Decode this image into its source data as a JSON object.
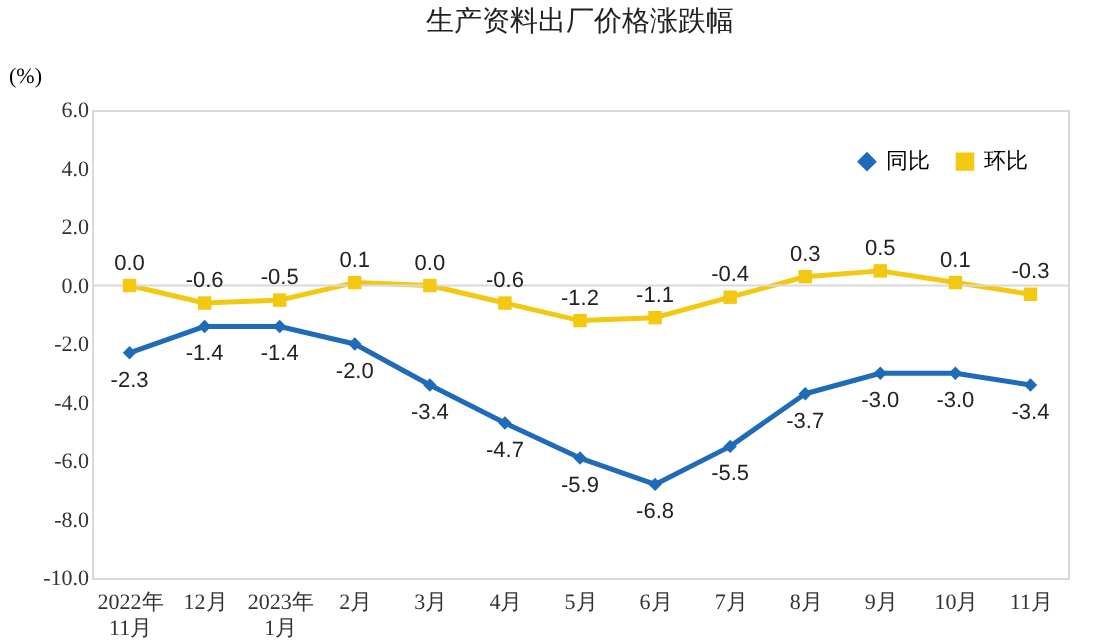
{
  "chart_data": {
    "type": "line",
    "title": "生产资料出厂价格涨跌幅",
    "ylabel": "(%)",
    "categories": [
      "2022年\n11月",
      "12月",
      "2023年\n1月",
      "2月",
      "3月",
      "4月",
      "5月",
      "6月",
      "7月",
      "8月",
      "9月",
      "10月",
      "11月"
    ],
    "series": [
      {
        "name": "同比",
        "color": "#1f6bb8",
        "marker": "diamond",
        "values": [
          -2.3,
          -1.4,
          -1.4,
          -2.0,
          -3.4,
          -4.7,
          -5.9,
          -6.8,
          -5.5,
          -3.7,
          -3.0,
          -3.0,
          -3.4
        ],
        "value_labels": [
          "-2.3",
          "-1.4",
          "-1.4",
          "-2.0",
          "-3.4",
          "-4.7",
          "-5.9",
          "-6.8",
          "-5.5",
          "-3.7",
          "-3.0",
          "-3.0",
          "-3.4"
        ]
      },
      {
        "name": "环比",
        "color": "#f2c811",
        "marker": "square",
        "values": [
          0.0,
          -0.6,
          -0.5,
          0.1,
          0.0,
          -0.6,
          -1.2,
          -1.1,
          -0.4,
          0.3,
          0.5,
          0.1,
          -0.3
        ],
        "value_labels": [
          "0.0",
          "-0.6",
          "-0.5",
          "0.1",
          "0.0",
          "-0.6",
          "-1.2",
          "-1.1",
          "-0.4",
          "0.3",
          "0.5",
          "0.1",
          "-0.3"
        ]
      }
    ],
    "ylim": [
      -10,
      6
    ],
    "yticks": [
      {
        "value": -10,
        "label": "-10.0"
      },
      {
        "value": -8,
        "label": "-8.0"
      },
      {
        "value": -6,
        "label": "-6.0"
      },
      {
        "value": -4,
        "label": "-4.0"
      },
      {
        "value": -2,
        "label": "-2.0"
      },
      {
        "value": 0,
        "label": "0.0"
      },
      {
        "value": 2,
        "label": "2.0"
      },
      {
        "value": 4,
        "label": "4.0"
      },
      {
        "value": 6,
        "label": "6.0"
      }
    ],
    "ref_lines": [
      {
        "axis": "y",
        "value": 0,
        "color": "#d9d9d9"
      }
    ],
    "legend": "top right",
    "line_style": "solid"
  }
}
